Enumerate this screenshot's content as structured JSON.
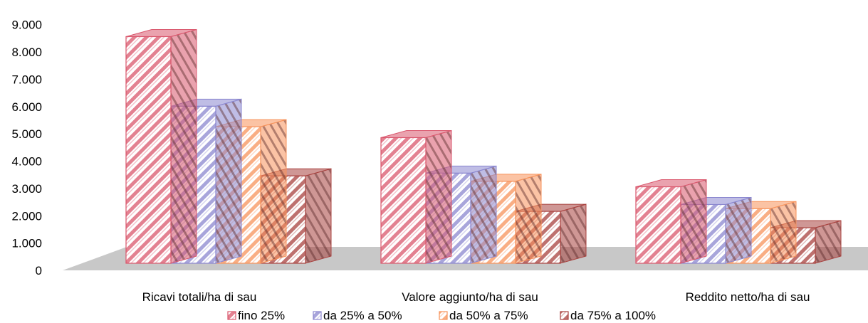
{
  "chart_data": {
    "type": "bar",
    "subtype": "3d-clustered-column",
    "categories": [
      "Ricavi totali/ha di sau",
      "Valore aggiunto/ha di sau",
      "Reddito netto/ha di sau"
    ],
    "series": [
      {
        "name": "fino 25%",
        "values": [
          8300,
          4600,
          2800
        ],
        "color": "#d9566c"
      },
      {
        "name": "da 25% a 50%",
        "values": [
          5750,
          3300,
          2150
        ],
        "color": "#8a86cf"
      },
      {
        "name": "da 50% a 75%",
        "values": [
          5000,
          3000,
          2000
        ],
        "color": "#f7925a"
      },
      {
        "name": "da 75% a 100%",
        "values": [
          3200,
          1900,
          1300
        ],
        "color": "#a8413e"
      }
    ],
    "yticks": [
      "0",
      "1.000",
      "2.000",
      "3.000",
      "4.000",
      "5.000",
      "6.000",
      "7.000",
      "8.000",
      "9.000"
    ],
    "ylim": [
      0,
      9000
    ],
    "title": "",
    "xlabel": "",
    "ylabel": "",
    "grid": false,
    "legend_position": "bottom"
  }
}
